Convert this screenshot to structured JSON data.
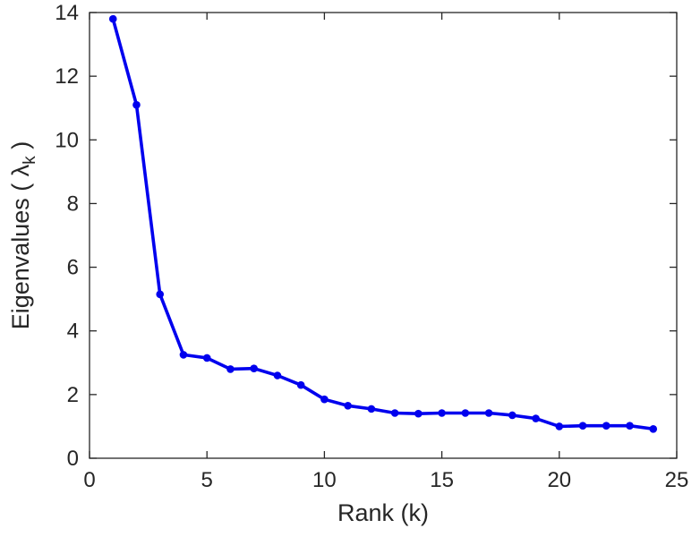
{
  "chart_data": {
    "type": "line",
    "title": "",
    "xlabel": "Rank (k)",
    "ylabel": "Eigenvalues ( λ_k )",
    "ylabel_parts": {
      "prefix": "Eigenvalues ( λ",
      "sub": "k",
      "suffix": " )"
    },
    "x": [
      1,
      2,
      3,
      4,
      5,
      6,
      7,
      8,
      9,
      10,
      11,
      12,
      13,
      14,
      15,
      16,
      17,
      18,
      19,
      20,
      21,
      22,
      23,
      24
    ],
    "values": [
      13.8,
      11.1,
      5.15,
      3.25,
      3.15,
      2.8,
      2.82,
      2.6,
      2.3,
      1.85,
      1.65,
      1.55,
      1.42,
      1.4,
      1.42,
      1.42,
      1.42,
      1.35,
      1.25,
      1.0,
      1.02,
      1.02,
      1.02,
      0.92
    ],
    "xlim": [
      0,
      25
    ],
    "ylim": [
      0,
      14
    ],
    "xticks": [
      0,
      5,
      10,
      15,
      20,
      25
    ],
    "yticks": [
      0,
      2,
      4,
      6,
      8,
      10,
      12,
      14
    ],
    "grid": "off",
    "legend": "none",
    "line_color": "#0000ee",
    "axis_color": "#262626",
    "text_color": "#262626"
  }
}
